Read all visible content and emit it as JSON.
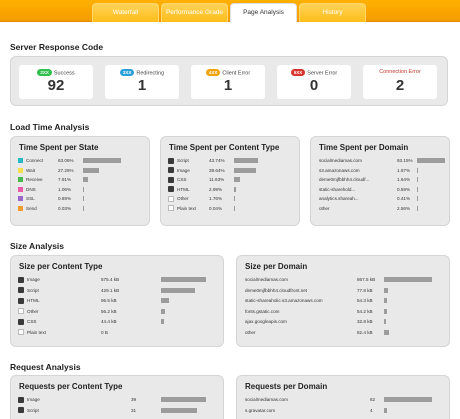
{
  "tabs": [
    "Waterfall",
    "Performance Grade",
    "Page Analysis",
    "History"
  ],
  "active_tab": 2,
  "server_response": {
    "title": "Server Response Code",
    "codes": [
      {
        "badge": "2XX",
        "label": "Success",
        "value": "92",
        "color": "#2fbf4b"
      },
      {
        "badge": "3XX",
        "label": "Redirecting",
        "value": "1",
        "color": "#2b9fd8"
      },
      {
        "badge": "4XX",
        "label": "Client Error",
        "value": "1",
        "color": "#f0a30a"
      },
      {
        "badge": "5XX",
        "label": "Server Error",
        "value": "0",
        "color": "#d7352f"
      },
      {
        "badge": "",
        "label": "Connection Error",
        "value": "2",
        "color": ""
      }
    ]
  },
  "load_time": {
    "title": "Load Time Analysis",
    "per_state": {
      "title": "Time Spent per State",
      "rows": [
        {
          "label": "Connect",
          "value": "63.06%",
          "pct": 63.06,
          "color": "#26b8c4"
        },
        {
          "label": "Wait",
          "value": "27.26%",
          "pct": 27.26,
          "color": "#f5e04c"
        },
        {
          "label": "Receive",
          "value": "7.91%",
          "pct": 7.91,
          "color": "#48b84a"
        },
        {
          "label": "DNS",
          "value": "1.06%",
          "pct": 1.06,
          "color": "#e85aa8"
        },
        {
          "label": "SSL",
          "value": "0.69%",
          "pct": 0.69,
          "color": "#9a67c8"
        },
        {
          "label": "Send",
          "value": "0.03%",
          "pct": 0.03,
          "color": "#f29b2f"
        }
      ]
    },
    "per_content": {
      "title": "Time Spent per Content Type",
      "rows": [
        {
          "label": "Script",
          "value": "43.74%",
          "pct": 43.74,
          "icon": "script-icon"
        },
        {
          "label": "Image",
          "value": "39.64%",
          "pct": 39.64,
          "icon": "image-icon"
        },
        {
          "label": "CSS",
          "value": "11.63%",
          "pct": 11.63,
          "icon": "css-icon"
        },
        {
          "label": "HTML",
          "value": "2.99%",
          "pct": 2.99,
          "icon": "html-icon"
        },
        {
          "label": "Other",
          "value": "1.76%",
          "pct": 1.76,
          "icon": "other-icon"
        },
        {
          "label": "Plain text",
          "value": "0.04%",
          "pct": 0.04,
          "icon": "plain-text-icon"
        }
      ]
    },
    "per_domain": {
      "title": "Time Spent per Domain",
      "rows": [
        {
          "label": "socialmediamas.com",
          "value": "93.15%",
          "pct": 93.15
        },
        {
          "label": "s3.amazonaws.com",
          "value": "1.67%",
          "pct": 1.67
        },
        {
          "label": "deme0mjfbbhh4.cloudf...",
          "value": "1.64%",
          "pct": 1.64
        },
        {
          "label": "static-sharehold...",
          "value": "0.59%",
          "pct": 0.59
        },
        {
          "label": "analytics.shareah...",
          "value": "0.41%",
          "pct": 0.41
        },
        {
          "label": "other",
          "value": "2.56%",
          "pct": 2.56
        }
      ]
    }
  },
  "size": {
    "title": "Size Analysis",
    "per_content": {
      "title": "Size per Content Type",
      "rows": [
        {
          "label": "Image",
          "value": "575.4 kB",
          "pct": 100,
          "icon": "image-icon"
        },
        {
          "label": "Script",
          "value": "429.1 kB",
          "pct": 74.6,
          "icon": "script-icon"
        },
        {
          "label": "HTML",
          "value": "96.5 kB",
          "pct": 16.8,
          "icon": "html-icon"
        },
        {
          "label": "Other",
          "value": "56.2 kB",
          "pct": 9.8,
          "icon": "other-icon"
        },
        {
          "label": "CSS",
          "value": "44.4 kB",
          "pct": 7.7,
          "icon": "css-icon"
        },
        {
          "label": "Plain text",
          "value": "0 B",
          "pct": 0,
          "icon": "plain-text-icon"
        }
      ]
    },
    "per_domain": {
      "title": "Size per Domain",
      "rows": [
        {
          "label": "socialmediamas.com",
          "value": "867.5 kB",
          "pct": 100
        },
        {
          "label": "deme0mjfbbhh4.cloudfront.net",
          "value": "77.8 kB",
          "pct": 9.0
        },
        {
          "label": "static-shareaholic.s3.amazonaws.com",
          "value": "54.3 kB",
          "pct": 6.3
        },
        {
          "label": "fonts.gstatic.com",
          "value": "54.2 kB",
          "pct": 6.2
        },
        {
          "label": "ajax.googleapis.com",
          "value": "32.8 kB",
          "pct": 3.8
        },
        {
          "label": "other",
          "value": "82.4 kB",
          "pct": 9.5
        }
      ]
    }
  },
  "requests": {
    "title": "Request Analysis",
    "per_content": {
      "title": "Requests per Content Type",
      "rows": [
        {
          "label": "Image",
          "value": "39",
          "pct": 100,
          "icon": "image-icon"
        },
        {
          "label": "Script",
          "value": "31",
          "pct": 79.5,
          "icon": "script-icon"
        }
      ]
    },
    "per_domain": {
      "title": "Requests per Domain",
      "rows": [
        {
          "label": "socialmediamas.com",
          "value": "62",
          "pct": 100
        },
        {
          "label": "s.gravatar.com",
          "value": "4",
          "pct": 6.5
        }
      ]
    }
  }
}
